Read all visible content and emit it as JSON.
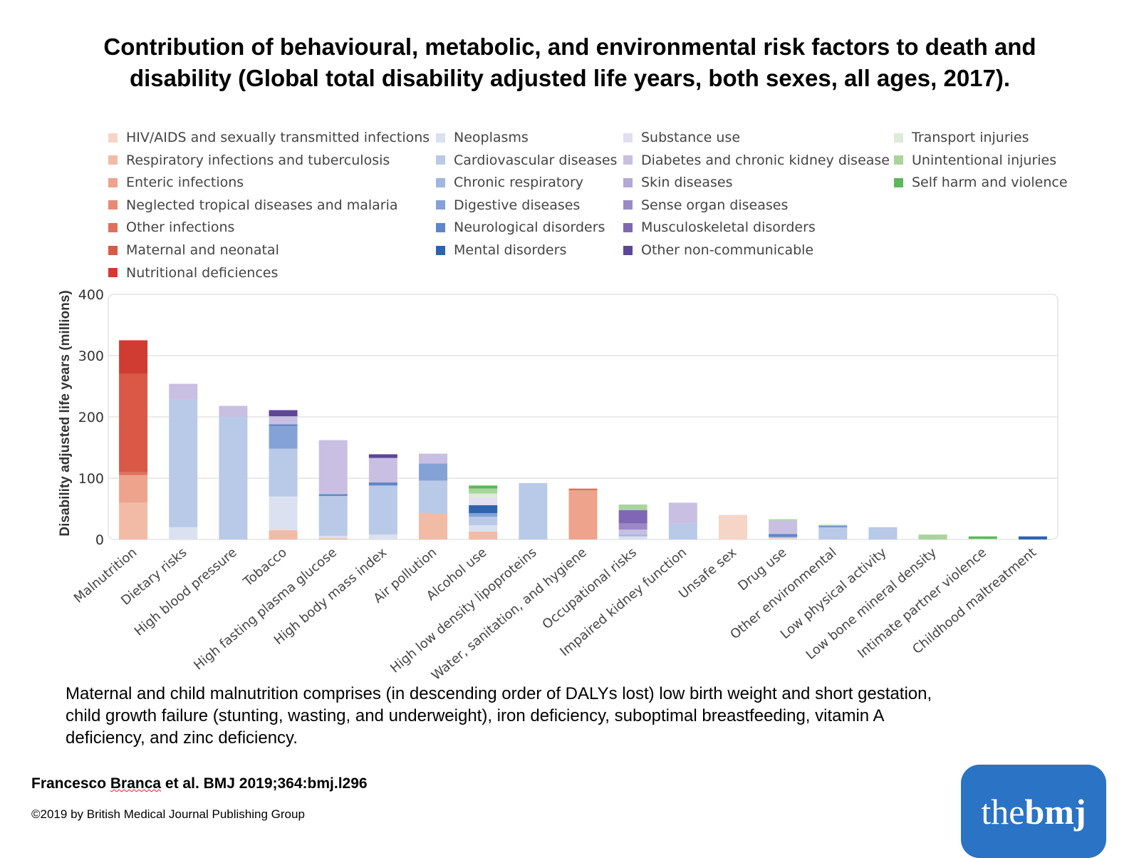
{
  "title": {
    "line1": "Contribution of behavioural, metabolic, and environmental risk factors to death and",
    "line2": "disability (Global total disability adjusted life years, both sexes, all ages, 2017)."
  },
  "caption": {
    "line1": "Maternal and child malnutrition comprises (in descending order of DALYs lost) low birth weight and short gestation,",
    "line2": "child growth failure (stunting, wasting, and underweight), iron deficiency, suboptimal breastfeeding, vitamin A",
    "line3": "deficiency, and zinc deficiency."
  },
  "citation": {
    "before": "Francesco ",
    "underlined": "Branca",
    "after": " et al. BMJ 2019;364:bmj.l296"
  },
  "copyright": "©2019 by British Medical Journal Publishing Group",
  "logo": {
    "the": "the",
    "bmj": "bmj",
    "color": "#2a73c5"
  },
  "chart_data": {
    "type": "bar",
    "stacked": true,
    "ylabel": "Disability adjusted life years (millions)",
    "ylim": [
      0,
      400
    ],
    "yticks": [
      0,
      100,
      200,
      300,
      400
    ],
    "grid": true,
    "legend_position": "top",
    "categories": [
      "Malnutrition",
      "Dietary risks",
      "High blood pressure",
      "Tobacco",
      "High fasting plasma glucose",
      "High body mass index",
      "Air pollution",
      "Alcohol use",
      "High low density lipoproteins",
      "Water, sanitation, and hygiene",
      "Occupational risks",
      "Impaired kidney function",
      "Unsafe sex",
      "Drug use",
      "Other environmental",
      "Low physical activity",
      "Low bone mineral density",
      "Intimate partner violence",
      "Childhood maltreatment"
    ],
    "series": [
      {
        "name": "HIV/AIDS and sexually transmitted infections",
        "color": "#f6d5c6",
        "values": [
          0,
          0,
          0,
          0,
          0,
          0,
          0,
          0,
          0,
          0,
          0,
          0,
          40,
          2,
          0,
          0,
          0,
          1,
          0
        ]
      },
      {
        "name": "Respiratory infections and tuberculosis",
        "color": "#f2bba6",
        "values": [
          60,
          0,
          0,
          15,
          2,
          0,
          43,
          13,
          0,
          0,
          0,
          0,
          0,
          0,
          0,
          0,
          0,
          0,
          0
        ]
      },
      {
        "name": "Enteric infections",
        "color": "#eea38c",
        "values": [
          45,
          0,
          0,
          0,
          0,
          0,
          0,
          0,
          0,
          80,
          0,
          0,
          0,
          0,
          0,
          0,
          0,
          0,
          0
        ]
      },
      {
        "name": "Neglected tropical diseases and malaria",
        "color": "#e88a73",
        "values": [
          0,
          0,
          0,
          0,
          0,
          0,
          0,
          0,
          0,
          0,
          0,
          0,
          0,
          0,
          0,
          0,
          0,
          0,
          0
        ]
      },
      {
        "name": "Other infections",
        "color": "#e0705c",
        "values": [
          5,
          0,
          0,
          0,
          0,
          0,
          0,
          0,
          0,
          3,
          0,
          0,
          0,
          0,
          0,
          0,
          0,
          0,
          0
        ]
      },
      {
        "name": "Maternal and neonatal",
        "color": "#d95846",
        "values": [
          160,
          0,
          0,
          0,
          0,
          0,
          0,
          0,
          0,
          0,
          0,
          0,
          0,
          0,
          0,
          0,
          0,
          0,
          0
        ]
      },
      {
        "name": "Nutritional deficiences",
        "color": "#d03b32",
        "values": [
          55,
          0,
          0,
          0,
          0,
          0,
          0,
          0,
          0,
          0,
          0,
          0,
          0,
          0,
          0,
          0,
          0,
          0,
          0
        ]
      },
      {
        "name": "Neoplasms",
        "color": "#dbe1f1",
        "values": [
          0,
          20,
          0,
          55,
          4,
          8,
          0,
          10,
          0,
          0,
          5,
          0,
          0,
          0,
          0,
          0,
          0,
          0,
          0
        ]
      },
      {
        "name": "Cardiovascular diseases",
        "color": "#b9c9e8",
        "values": [
          0,
          209,
          200,
          78,
          65,
          80,
          53,
          14,
          92,
          0,
          0,
          26,
          0,
          2,
          20,
          20,
          0,
          0,
          0
        ]
      },
      {
        "name": "Chronic respiratory",
        "color": "#9fb6e0",
        "values": [
          0,
          0,
          0,
          0,
          0,
          0,
          0,
          0,
          0,
          0,
          3,
          0,
          0,
          0,
          0,
          0,
          0,
          0,
          0
        ]
      },
      {
        "name": "Digestive diseases",
        "color": "#84a2d6",
        "values": [
          0,
          0,
          0,
          37,
          0,
          0,
          28,
          6,
          0,
          0,
          0,
          0,
          0,
          0,
          0,
          0,
          0,
          0,
          0
        ]
      },
      {
        "name": "Neurological disorders",
        "color": "#5f86c8",
        "values": [
          0,
          0,
          0,
          3,
          3,
          5,
          0,
          0,
          0,
          0,
          0,
          0,
          0,
          5,
          2,
          0,
          0,
          0,
          0
        ]
      },
      {
        "name": "Mental disorders",
        "color": "#2e64ad",
        "values": [
          0,
          0,
          0,
          0,
          0,
          0,
          0,
          13,
          0,
          0,
          0,
          0,
          0,
          0,
          0,
          0,
          0,
          0,
          5
        ]
      },
      {
        "name": "Substance use",
        "color": "#e2dff0",
        "values": [
          0,
          0,
          0,
          0,
          0,
          0,
          0,
          12,
          0,
          0,
          0,
          0,
          0,
          0,
          0,
          0,
          0,
          0,
          0
        ]
      },
      {
        "name": "Diabetes and chronic kidney disease",
        "color": "#c8bfe2",
        "values": [
          0,
          25,
          18,
          13,
          88,
          40,
          16,
          0,
          0,
          0,
          8,
          34,
          0,
          22,
          0,
          0,
          0,
          0,
          0
        ]
      },
      {
        "name": "Skin diseases",
        "color": "#b5a7d6",
        "values": [
          0,
          0,
          0,
          0,
          0,
          0,
          0,
          0,
          0,
          0,
          0,
          0,
          0,
          0,
          0,
          0,
          0,
          0,
          0
        ]
      },
      {
        "name": "Sense organ diseases",
        "color": "#9b89c6",
        "values": [
          0,
          0,
          0,
          0,
          0,
          0,
          0,
          0,
          0,
          0,
          10,
          0,
          0,
          0,
          0,
          0,
          0,
          0,
          0
        ]
      },
      {
        "name": "Musculoskeletal disorders",
        "color": "#8067b5",
        "values": [
          0,
          0,
          0,
          0,
          0,
          0,
          0,
          0,
          0,
          0,
          22,
          0,
          0,
          0,
          0,
          0,
          0,
          0,
          0
        ]
      },
      {
        "name": "Other non-communicable",
        "color": "#5d4597",
        "values": [
          0,
          0,
          0,
          10,
          0,
          6,
          0,
          0,
          0,
          0,
          0,
          0,
          0,
          0,
          0,
          0,
          0,
          0,
          0
        ]
      },
      {
        "name": "Transport injuries",
        "color": "#ddebd8",
        "values": [
          0,
          0,
          0,
          0,
          0,
          0,
          0,
          7,
          0,
          0,
          0,
          0,
          0,
          0,
          0,
          0,
          0,
          0,
          0
        ]
      },
      {
        "name": "Unintentional injuries",
        "color": "#a9d59c",
        "values": [
          0,
          0,
          0,
          0,
          0,
          0,
          0,
          8,
          0,
          0,
          9,
          0,
          0,
          2,
          2,
          0,
          8,
          0,
          0
        ]
      },
      {
        "name": "Self harm and violence",
        "color": "#5cb85a",
        "values": [
          0,
          0,
          0,
          0,
          0,
          0,
          0,
          5,
          0,
          0,
          0,
          0,
          0,
          0,
          0,
          0,
          0,
          4,
          0
        ]
      }
    ]
  }
}
